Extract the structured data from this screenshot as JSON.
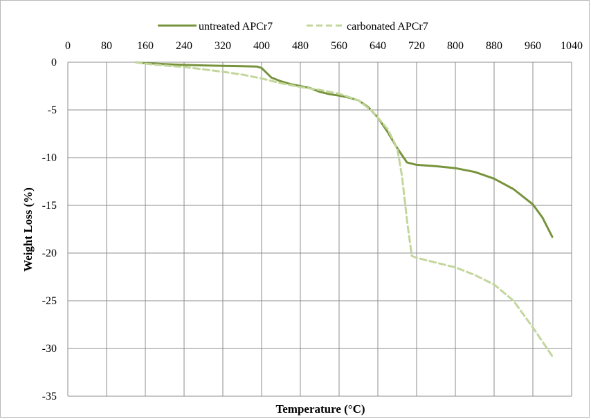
{
  "chart_data": {
    "type": "line",
    "xlabel": "Temperature (°C)",
    "ylabel": "Weight Loss (%)",
    "xlim": [
      0,
      1040
    ],
    "ylim": [
      -35,
      0
    ],
    "x_ticks": [
      0,
      80,
      160,
      240,
      320,
      400,
      480,
      560,
      640,
      720,
      800,
      880,
      960,
      1040
    ],
    "y_ticks": [
      0,
      -5,
      -10,
      -15,
      -20,
      -25,
      -30,
      -35
    ],
    "grid": true,
    "legend_position": "top",
    "x_axis_position": "top",
    "series": [
      {
        "name": "untreated APCr7",
        "color": "#77933c",
        "style": "solid",
        "points": [
          [
            140,
            0
          ],
          [
            160,
            -0.1
          ],
          [
            200,
            -0.2
          ],
          [
            240,
            -0.28
          ],
          [
            280,
            -0.33
          ],
          [
            320,
            -0.38
          ],
          [
            360,
            -0.42
          ],
          [
            390,
            -0.45
          ],
          [
            400,
            -0.6
          ],
          [
            410,
            -1.1
          ],
          [
            420,
            -1.6
          ],
          [
            440,
            -2.0
          ],
          [
            460,
            -2.3
          ],
          [
            480,
            -2.5
          ],
          [
            500,
            -2.7
          ],
          [
            520,
            -3.1
          ],
          [
            540,
            -3.35
          ],
          [
            560,
            -3.5
          ],
          [
            580,
            -3.7
          ],
          [
            600,
            -4.0
          ],
          [
            620,
            -4.7
          ],
          [
            640,
            -5.8
          ],
          [
            660,
            -7.3
          ],
          [
            680,
            -9.0
          ],
          [
            700,
            -10.5
          ],
          [
            720,
            -10.75
          ],
          [
            760,
            -10.9
          ],
          [
            800,
            -11.1
          ],
          [
            840,
            -11.5
          ],
          [
            880,
            -12.2
          ],
          [
            920,
            -13.3
          ],
          [
            960,
            -14.9
          ],
          [
            980,
            -16.3
          ],
          [
            1000,
            -18.3
          ]
        ]
      },
      {
        "name": "carbonated APCr7",
        "color": "#c3d69b",
        "style": "dashed",
        "points": [
          [
            140,
            0
          ],
          [
            160,
            -0.15
          ],
          [
            200,
            -0.35
          ],
          [
            240,
            -0.5
          ],
          [
            280,
            -0.75
          ],
          [
            320,
            -1.0
          ],
          [
            360,
            -1.3
          ],
          [
            400,
            -1.7
          ],
          [
            440,
            -2.2
          ],
          [
            480,
            -2.6
          ],
          [
            520,
            -2.9
          ],
          [
            560,
            -3.3
          ],
          [
            600,
            -4.0
          ],
          [
            630,
            -5.2
          ],
          [
            660,
            -7.0
          ],
          [
            680,
            -9.0
          ],
          [
            690,
            -12.0
          ],
          [
            700,
            -16.5
          ],
          [
            710,
            -20.3
          ],
          [
            720,
            -20.5
          ],
          [
            760,
            -21.0
          ],
          [
            800,
            -21.5
          ],
          [
            840,
            -22.3
          ],
          [
            880,
            -23.3
          ],
          [
            920,
            -25.0
          ],
          [
            960,
            -27.8
          ],
          [
            980,
            -29.3
          ],
          [
            1000,
            -30.8
          ]
        ]
      }
    ]
  }
}
